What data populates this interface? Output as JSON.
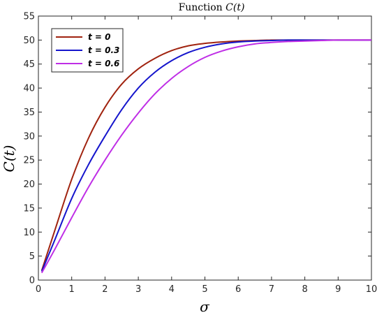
{
  "chart_data": {
    "type": "line",
    "title_prefix": "Function ",
    "title_math": "C(t)",
    "xlabel": "σ",
    "ylabel": "C(t)",
    "xlim": [
      0,
      10
    ],
    "ylim": [
      0,
      55
    ],
    "x_ticks": [
      "0",
      "1",
      "2",
      "3",
      "4",
      "5",
      "6",
      "7",
      "8",
      "9",
      "10"
    ],
    "y_ticks": [
      "0",
      "5",
      "10",
      "15",
      "20",
      "25",
      "30",
      "35",
      "40",
      "45",
      "50",
      "55"
    ],
    "grid": false,
    "legend_position": "top-left",
    "x": [
      0.1,
      0.5,
      1,
      1.5,
      2,
      2.5,
      3,
      3.5,
      4,
      4.5,
      5,
      5.5,
      6,
      6.5,
      7,
      7.5,
      8,
      8.5,
      9,
      9.5,
      10
    ],
    "series": [
      {
        "name": "t = 0",
        "color": "#a0230f",
        "values": [
          2,
          10.5,
          21,
          29.5,
          36,
          40.8,
          44,
          46.2,
          47.8,
          48.8,
          49.3,
          49.6,
          49.8,
          49.9,
          50,
          50,
          50,
          50,
          50,
          50,
          50
        ]
      },
      {
        "name": "t = 0.3",
        "color": "#1515cc",
        "values": [
          1.8,
          8.5,
          17,
          24,
          30,
          35.5,
          40,
          43.3,
          45.7,
          47.4,
          48.5,
          49.2,
          49.6,
          49.8,
          49.9,
          50,
          50,
          50,
          50,
          50,
          50
        ]
      },
      {
        "name": "t = 0.6",
        "color": "#bf2ee6",
        "values": [
          1.5,
          6.5,
          13,
          19.3,
          25,
          30.2,
          34.8,
          38.8,
          42,
          44.5,
          46.4,
          47.7,
          48.6,
          49.2,
          49.5,
          49.7,
          49.8,
          49.9,
          50,
          50,
          50
        ]
      }
    ]
  }
}
